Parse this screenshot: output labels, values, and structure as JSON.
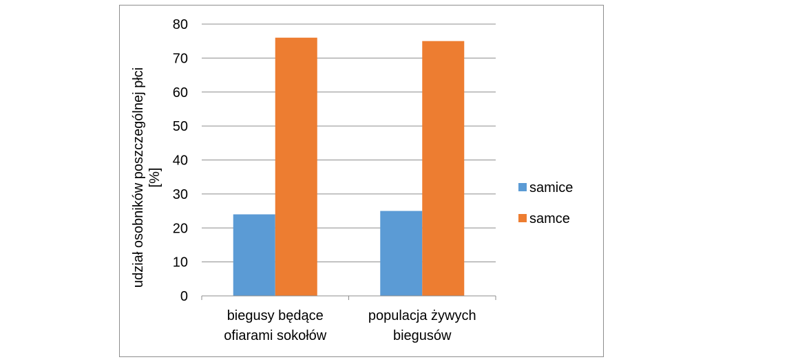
{
  "chart_data": {
    "type": "bar",
    "categories": [
      [
        "biegusy będące",
        "ofiarami sokołów"
      ],
      [
        "populacja żywych",
        "biegusów"
      ]
    ],
    "series": [
      {
        "name": "samice",
        "color": "#5b9bd5",
        "values": [
          24,
          25
        ]
      },
      {
        "name": "samce",
        "color": "#ed7d31",
        "values": [
          76,
          75
        ]
      }
    ],
    "ylabel": [
      "udział osobników poszczególnej płci",
      "[%]"
    ],
    "ylim": [
      0,
      80
    ],
    "yticks": [
      0,
      10,
      20,
      30,
      40,
      50,
      60,
      70,
      80
    ],
    "grid": true,
    "legend": "right",
    "gridColor": "#8c8c8c",
    "axisColor": "#8c8c8c"
  }
}
